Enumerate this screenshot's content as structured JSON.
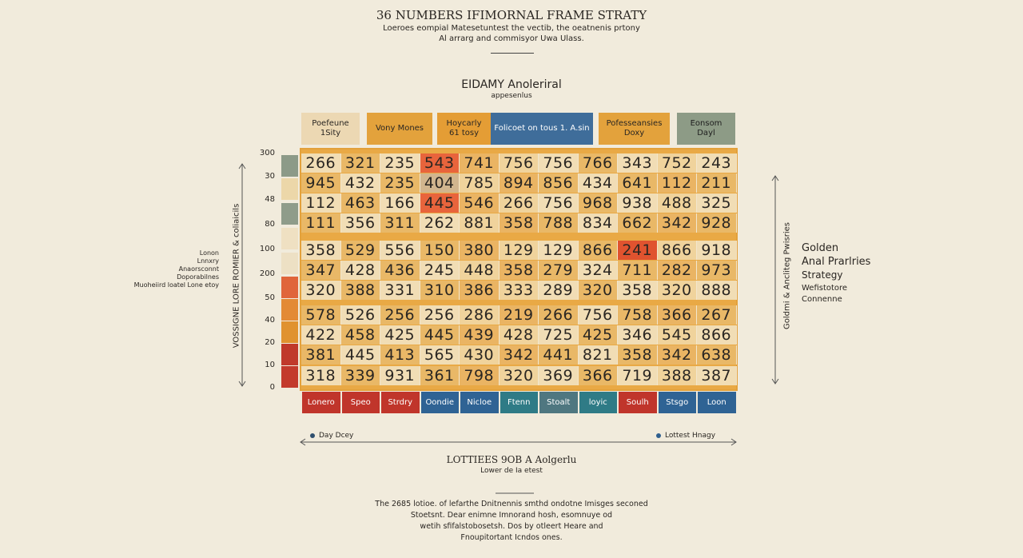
{
  "header": {
    "title": "36 NUMBERS IFIMORNAL FRAME STRATY",
    "subtitle": [
      "Loeroes eompial Matesetuntest the vectib, the oeatnenis prtony",
      "Al arrarg and commisyor Uwa Ulass."
    ]
  },
  "section": {
    "title": "EIDAMY Anoleriral",
    "subtitle": "appesenlus"
  },
  "column_headers": [
    "Poefeune 1Sity",
    "Vony Mones",
    "Hoycarly 61 tosy",
    "Folicoet on tous 1. A.sin",
    "Pofesseansies Doxy",
    "Eonsom Dayl"
  ],
  "scale": {
    "labels": [
      "300",
      "30",
      "48",
      "80",
      "100",
      "200",
      "50",
      "40",
      "20",
      "10",
      "0"
    ]
  },
  "left_labels": [
    "Lonon",
    "Lnnxry",
    "Anaorsconnt",
    "Doporabilnes",
    "Muoheiird loatel Lone etoy"
  ],
  "left_axis_title": "VOSSIGNE LORE ROMIER & coliaicils",
  "grid": {
    "rows": [
      [
        "266",
        "321",
        "235",
        "543",
        "741",
        "756",
        "756",
        "766",
        "343",
        "752",
        "243"
      ],
      [
        "945",
        "432",
        "235",
        "404",
        "785",
        "894",
        "856",
        "434",
        "641",
        "112",
        "211"
      ],
      [
        "112",
        "463",
        "166",
        "445",
        "546",
        "266",
        "756",
        "968",
        "938",
        "488",
        "325"
      ],
      [
        "111",
        "356",
        "311",
        "262",
        "881",
        "358",
        "788",
        "834",
        "662",
        "342",
        "928"
      ],
      [
        "358",
        "529",
        "556",
        "150",
        "380",
        "129",
        "129",
        "866",
        "241",
        "866",
        "918"
      ],
      [
        "347",
        "428",
        "436",
        "245",
        "448",
        "358",
        "279",
        "324",
        "711",
        "282",
        "973"
      ],
      [
        "320",
        "388",
        "331",
        "310",
        "386",
        "333",
        "289",
        "320",
        "358",
        "320",
        "888"
      ],
      [
        "578",
        "526",
        "256",
        "256",
        "286",
        "219",
        "266",
        "756",
        "758",
        "366",
        "267"
      ],
      [
        "422",
        "458",
        "425",
        "445",
        "439",
        "428",
        "725",
        "425",
        "346",
        "545",
        "866"
      ],
      [
        "381",
        "445",
        "413",
        "565",
        "430",
        "342",
        "441",
        "821",
        "358",
        "342",
        "638"
      ],
      [
        "318",
        "339",
        "931",
        "361",
        "798",
        "320",
        "369",
        "366",
        "719",
        "388",
        "387"
      ]
    ]
  },
  "bottom_labels": [
    "Lonero",
    "Speo",
    "Strdry",
    "Oondie",
    "Nicloe",
    "Ftenn",
    "Stoalt",
    "loyic",
    "Soulh",
    "Stsgo",
    "Loon"
  ],
  "right_panel": {
    "title": [
      "Golden",
      "Anal Prarlries",
      "Strategy"
    ],
    "notes": [
      "Wefistotore",
      "Connenne"
    ],
    "axis_title": "Goldmi & Ancliteg Pwisries"
  },
  "legend": {
    "left": "Day Dcey",
    "right": "Lottest Hnagy"
  },
  "footer": {
    "title": "LOTTIEES 9OB A Aolgerlu",
    "subtitle": "Lower de Ia etest",
    "paragraph": [
      "The 2685 lotioe. of lefarthe Dnitnennis smthd ondotne Imisges seconed",
      "Stoetsnt. Dear enimne Imnorand hosh, esomnuye od",
      "wetih sfifalstobosetsh. Dos by otleert Heare and",
      "Fnoupitortant Icndos ones."
    ]
  }
}
